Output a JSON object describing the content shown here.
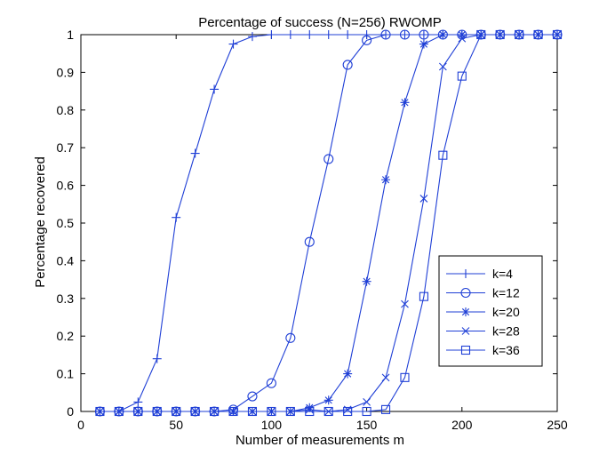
{
  "chart_data": {
    "type": "line",
    "title": "Percentage of success (N=256) RWOMP",
    "xlabel": "Number of measurements m",
    "ylabel": "Percentage recovered",
    "xlim": [
      0,
      250
    ],
    "ylim": [
      0,
      1
    ],
    "xticks": [
      0,
      50,
      100,
      150,
      200,
      250
    ],
    "yticks": [
      0,
      0.1,
      0.2,
      0.3,
      0.4,
      0.5,
      0.6,
      0.7,
      0.8,
      0.9,
      1
    ],
    "xtick_labels": [
      "0",
      "50",
      "100",
      "150",
      "200",
      "250"
    ],
    "ytick_labels": [
      "0",
      "0.1",
      "0.2",
      "0.3",
      "0.4",
      "0.5",
      "0.6",
      "0.7",
      "0.8",
      "0.9",
      "1"
    ],
    "grid": false,
    "legend_position": "lower-right inside",
    "line_color": "#1f3fd6",
    "x": [
      10,
      20,
      30,
      40,
      50,
      60,
      70,
      80,
      90,
      100,
      110,
      120,
      130,
      140,
      150,
      160,
      170,
      180,
      190,
      200,
      210,
      220,
      230,
      240,
      250
    ],
    "series": [
      {
        "name": "k=4",
        "marker": "plus",
        "values": [
          0,
          0,
          0.025,
          0.14,
          0.515,
          0.685,
          0.855,
          0.975,
          0.995,
          1,
          1,
          1,
          1,
          1,
          1,
          1,
          1,
          1,
          1,
          1,
          1,
          1,
          1,
          1,
          1
        ]
      },
      {
        "name": "k=12",
        "marker": "circle",
        "values": [
          0,
          0,
          0,
          0,
          0,
          0,
          0,
          0.005,
          0.04,
          0.075,
          0.195,
          0.45,
          0.67,
          0.92,
          0.985,
          1,
          1,
          1,
          1,
          1,
          1,
          1,
          1,
          1,
          1
        ]
      },
      {
        "name": "k=20",
        "marker": "star",
        "values": [
          0,
          0,
          0,
          0,
          0,
          0,
          0,
          0,
          0,
          0,
          0,
          0.01,
          0.03,
          0.1,
          0.345,
          0.615,
          0.82,
          0.975,
          1,
          1,
          1,
          1,
          1,
          1,
          1
        ]
      },
      {
        "name": "k=28",
        "marker": "x",
        "values": [
          0,
          0,
          0,
          0,
          0,
          0,
          0,
          0,
          0,
          0,
          0,
          0.005,
          0,
          0.005,
          0.025,
          0.09,
          0.285,
          0.565,
          0.915,
          0.99,
          1,
          1,
          1,
          1,
          1
        ]
      },
      {
        "name": "k=36",
        "marker": "square",
        "values": [
          0,
          0,
          0,
          0,
          0,
          0,
          0,
          0,
          0,
          0,
          0,
          0,
          0,
          0,
          0,
          0.005,
          0.09,
          0.305,
          0.68,
          0.89,
          1,
          1,
          1,
          1,
          1
        ]
      }
    ]
  }
}
